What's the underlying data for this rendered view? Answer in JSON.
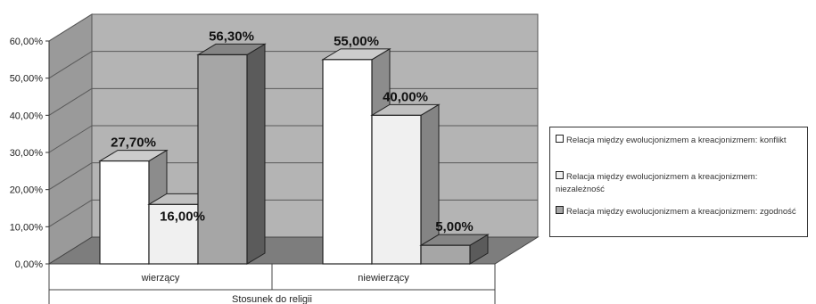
{
  "chart_data": {
    "type": "bar",
    "categories": [
      "wierzący",
      "niewierzący"
    ],
    "series": [
      {
        "name": "Relacja między ewolucjonizmem a kreacjonizmem: konflikt",
        "values": [
          27.7,
          55.0
        ],
        "labels": [
          "27,70%",
          "55,00%"
        ],
        "color": "#ffffff"
      },
      {
        "name": "Relacja między ewolucjonizmem a kreacjonizmem: niezależność",
        "values": [
          16.0,
          40.0
        ],
        "labels": [
          "16,00%",
          "40,00%"
        ],
        "color": "#f0f0f0"
      },
      {
        "name": "Relacja między ewolucjonizmem a kreacjonizmem: zgodność",
        "values": [
          56.3,
          5.0
        ],
        "labels": [
          "56,30%",
          "5,00%"
        ],
        "color": "#a6a6a6"
      }
    ],
    "xlabel": "Stosunek do religii",
    "ylabel": "",
    "ylim": [
      0,
      60
    ],
    "yticks": [
      "0,00%",
      "10,00%",
      "20,00%",
      "30,00%",
      "40,00%",
      "50,00%",
      "60,00%"
    ],
    "grid": true,
    "legend_position": "right",
    "colors": {
      "wall": "#b4b4b4",
      "side_wall": "#9a9a9a",
      "floor": "#7d7d7d",
      "gridline": "#5a5a5a"
    }
  }
}
